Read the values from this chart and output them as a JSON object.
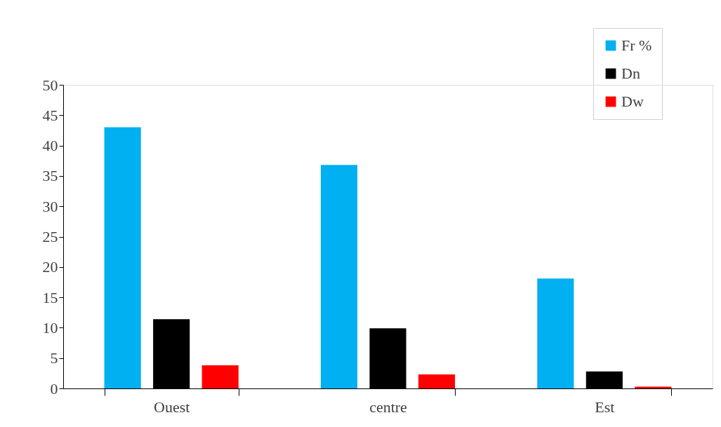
{
  "chart_data": {
    "type": "bar",
    "categories": [
      "Ouest",
      "centre",
      "Est"
    ],
    "series": [
      {
        "name": "Fr %",
        "color": "#00b0f0",
        "values": [
          43.0,
          36.8,
          18.1
        ]
      },
      {
        "name": "Dn",
        "color": "#000000",
        "values": [
          11.4,
          9.9,
          2.8
        ]
      },
      {
        "name": "Dw",
        "color": "#ff0000",
        "values": [
          3.8,
          2.3,
          0.3
        ]
      }
    ],
    "ylim": [
      0,
      50
    ],
    "yticks": [
      0,
      5,
      10,
      15,
      20,
      25,
      30,
      35,
      40,
      45,
      50
    ],
    "grid": false,
    "legend": "top right"
  }
}
